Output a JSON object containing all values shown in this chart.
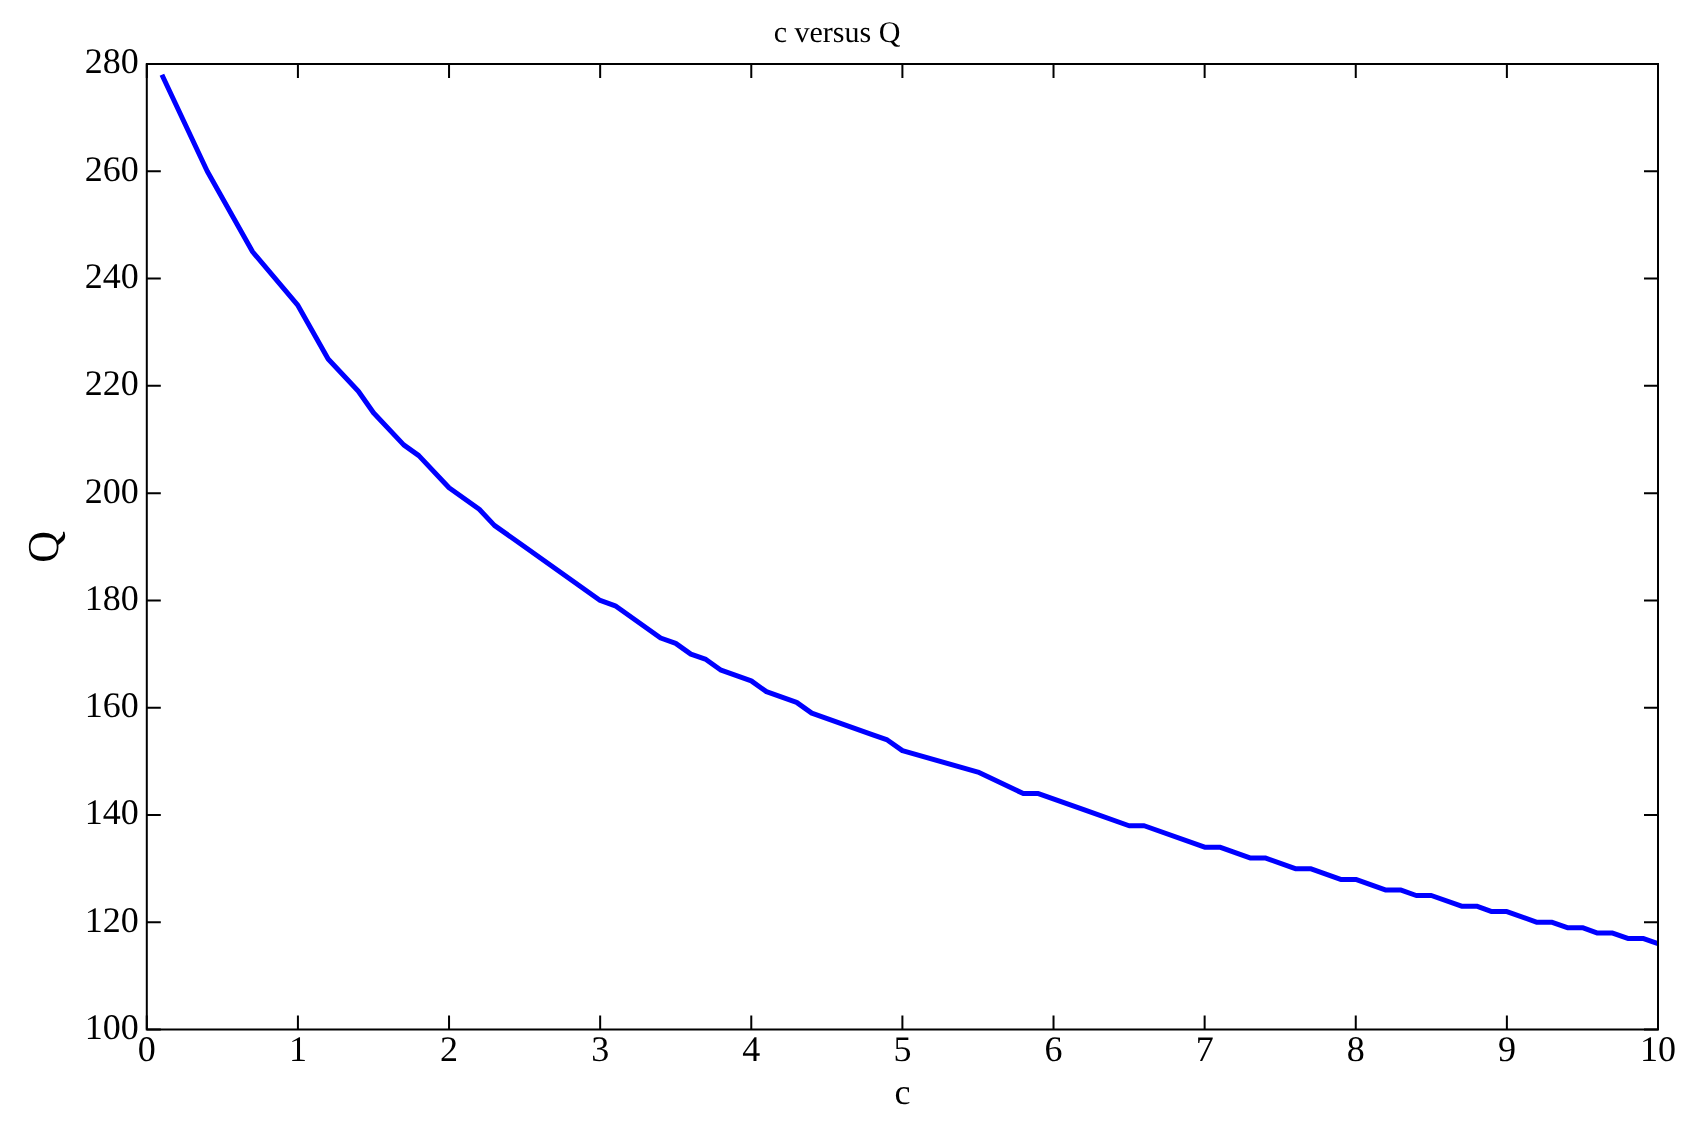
{
  "chart_data": {
    "type": "line",
    "title": "c versus Q",
    "xlabel": "c",
    "ylabel": "Q",
    "x": [
      0.1,
      0.4,
      0.7,
      1.0,
      1.2,
      1.4,
      1.5,
      1.7,
      1.8,
      2.0,
      2.2,
      2.3,
      2.5,
      2.7,
      2.9,
      3.0,
      3.1,
      3.4,
      3.5,
      3.6,
      3.7,
      3.8,
      4.0,
      4.1,
      4.3,
      4.4,
      4.6,
      4.8,
      4.9,
      5.0,
      5.5,
      5.8,
      5.9,
      6.2,
      6.5,
      6.6,
      7.0,
      7.1,
      7.3,
      7.4,
      7.6,
      7.7,
      7.9,
      8.0,
      8.2,
      8.3,
      8.4,
      8.5,
      8.7,
      8.8,
      8.9,
      9.0,
      9.2,
      9.3,
      9.4,
      9.5,
      9.6,
      9.7,
      9.8,
      9.9,
      10.0
    ],
    "series": [
      {
        "color": "#0000ff",
        "values": [
          278,
          260,
          245,
          235,
          225,
          219,
          215,
          209,
          207,
          201,
          197,
          194,
          190,
          186,
          182,
          180,
          179,
          173,
          172,
          170,
          169,
          167,
          165,
          163,
          161,
          159,
          157,
          155,
          154,
          152,
          148,
          144,
          144,
          141,
          138,
          138,
          134,
          134,
          132,
          132,
          130,
          130,
          128,
          128,
          126,
          126,
          125,
          125,
          123,
          123,
          122,
          122,
          120,
          120,
          119,
          119,
          118,
          118,
          117,
          117,
          116
        ]
      }
    ],
    "xlim": [
      0,
      10
    ],
    "xticks": [
      0,
      1,
      2,
      3,
      4,
      5,
      6,
      7,
      8,
      9,
      10
    ],
    "ylim": [
      100,
      280
    ],
    "yticks": [
      100,
      120,
      140,
      160,
      180,
      200,
      220,
      240,
      260,
      280
    ],
    "grid": false,
    "legend": false,
    "marker": "none",
    "line_style": "solid"
  }
}
